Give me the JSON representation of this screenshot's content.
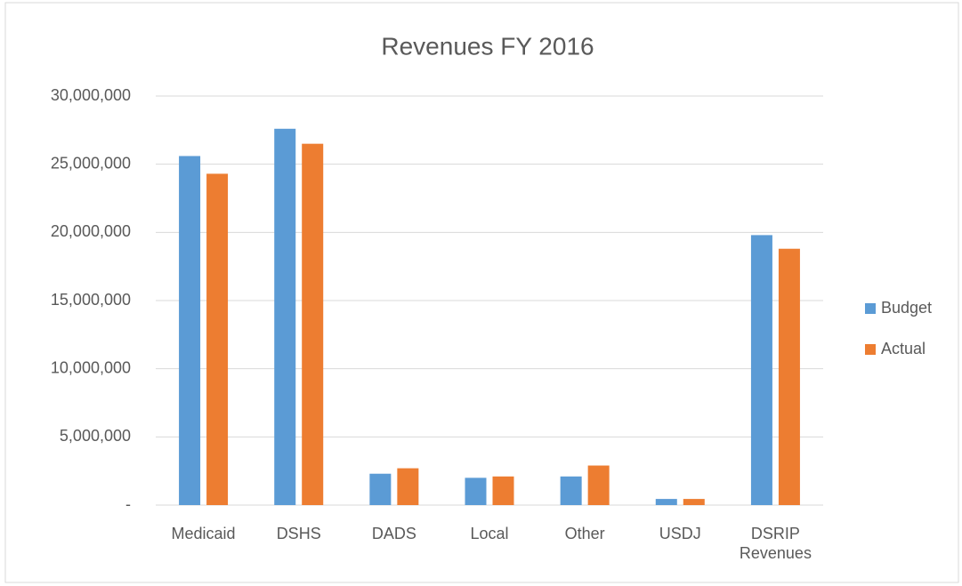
{
  "chart_data": {
    "type": "bar",
    "title": "Revenues FY 2016",
    "categories": [
      "Medicaid",
      "DSHS",
      "DADS",
      "Local",
      "Other",
      "USDJ",
      "DSRIP Revenues"
    ],
    "series": [
      {
        "name": "Budget",
        "color": "#5b9bd5",
        "values": [
          25600000,
          27600000,
          2300000,
          2000000,
          2100000,
          450000,
          19800000
        ]
      },
      {
        "name": "Actual",
        "color": "#ed7d31",
        "values": [
          24300000,
          26500000,
          2700000,
          2100000,
          2900000,
          450000,
          18800000
        ]
      }
    ],
    "ylim": [
      0,
      30000000
    ],
    "yticks": [
      {
        "value": 0,
        "label": "-"
      },
      {
        "value": 5000000,
        "label": "5,000,000"
      },
      {
        "value": 10000000,
        "label": "10,000,000"
      },
      {
        "value": 15000000,
        "label": "15,000,000"
      },
      {
        "value": 20000000,
        "label": "20,000,000"
      },
      {
        "value": 25000000,
        "label": "25,000,000"
      },
      {
        "value": 30000000,
        "label": "30,000,000"
      }
    ],
    "grid": true,
    "legend": "right"
  }
}
